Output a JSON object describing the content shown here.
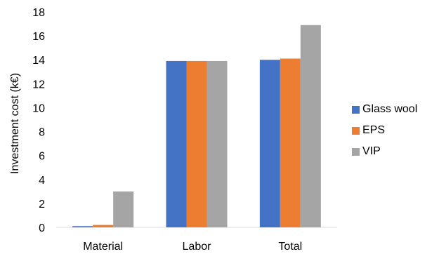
{
  "chart_data": {
    "type": "bar",
    "categories": [
      "Material",
      "Labor",
      "Total"
    ],
    "series": [
      {
        "name": "Glass wool",
        "values": [
          0.1,
          13.9,
          14.0
        ],
        "color": "#4472C4"
      },
      {
        "name": "EPS",
        "values": [
          0.2,
          13.9,
          14.1
        ],
        "color": "#ED7D31"
      },
      {
        "name": "VIP",
        "values": [
          3.0,
          13.9,
          16.9
        ],
        "color": "#A5A5A5"
      }
    ],
    "ylabel": "Investment cost (k€)",
    "xlabel": "",
    "ylim": [
      0,
      18
    ],
    "yticks": [
      0,
      2,
      4,
      6,
      8,
      10,
      12,
      14,
      16,
      18
    ],
    "grid": false,
    "legend_position": "right"
  }
}
